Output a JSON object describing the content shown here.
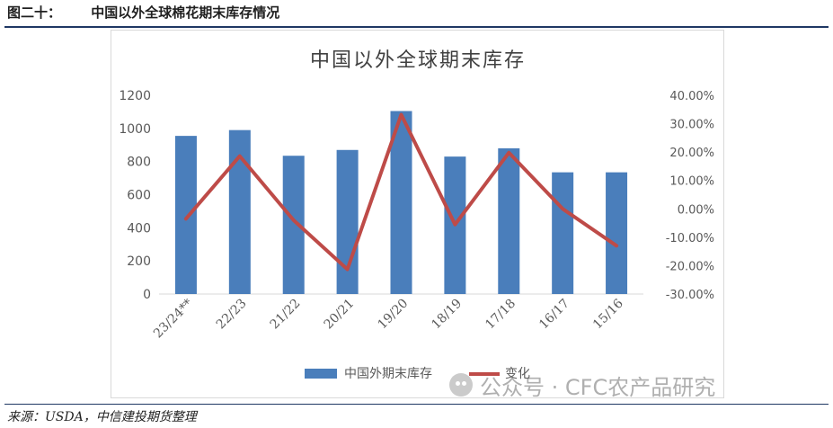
{
  "header": {
    "figure_number": "图二十：",
    "figure_title": "中国以外全球棉花期末库存情况"
  },
  "source_note": "来源：USDA，中信建投期货整理",
  "watermark": {
    "text": "公众号 · CFC农产品研究",
    "icon": "wechat-icon"
  },
  "colors": {
    "bar": "#4a7ebb",
    "line": "#be4b48",
    "rule": "#1f3864"
  },
  "chart_data": {
    "type": "bar",
    "title": "中国以外全球期末库存",
    "categories": [
      "23/24**",
      "22/23",
      "21/22",
      "20/21",
      "19/20",
      "18/19",
      "17/18",
      "16/17",
      "15/16"
    ],
    "series": [
      {
        "name": "中国外期末库存",
        "type": "bar",
        "axis": "left",
        "values": [
          955,
          990,
          835,
          870,
          1105,
          830,
          880,
          735,
          735
        ]
      },
      {
        "name": "变化",
        "type": "line",
        "axis": "right",
        "values": [
          -3.5,
          18.6,
          -4.0,
          -21.3,
          33.2,
          -5.5,
          19.8,
          0.0,
          -13.0
        ]
      }
    ],
    "left_axis": {
      "ylim": [
        0,
        1200
      ],
      "ticks": [
        "0",
        "200",
        "400",
        "600",
        "800",
        "1000",
        "1200"
      ]
    },
    "right_axis": {
      "ylim": [
        -30,
        40
      ],
      "ticks": [
        "-30.00%",
        "-20.00%",
        "-10.00%",
        "0.00%",
        "10.00%",
        "20.00%",
        "30.00%",
        "40.00%"
      ]
    },
    "legend_position": "bottom",
    "grid": false
  }
}
